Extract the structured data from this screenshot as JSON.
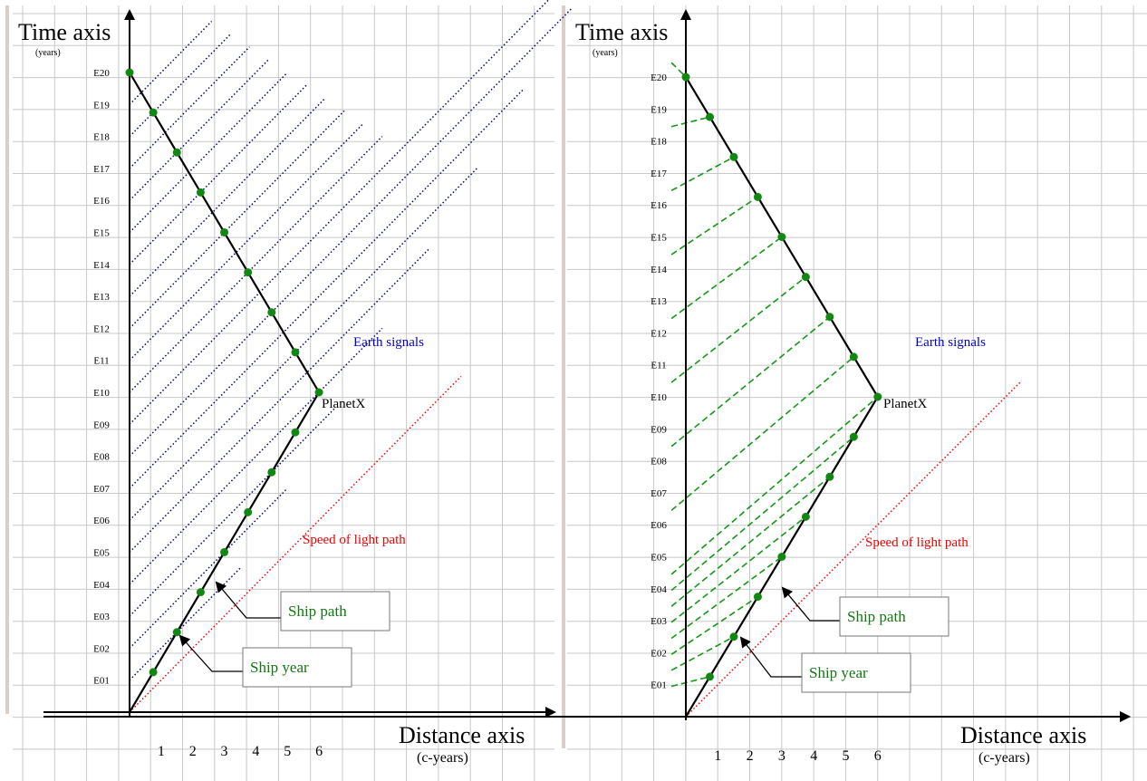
{
  "panels": [
    {
      "name": "left-panel",
      "signal_style": "earth-signals",
      "labels": {
        "time_axis": "Time axis",
        "time_unit": "(years)",
        "distance_axis": "Distance axis",
        "distance_unit": "(c-years)",
        "planet": "PlanetX",
        "earth_signals": "Earth signals",
        "light_path": "Speed of light path",
        "ship_path": "Ship path",
        "ship_year": "Ship year"
      }
    },
    {
      "name": "right-panel",
      "signal_style": "ship-signals",
      "labels": {
        "time_axis": "Time axis",
        "time_unit": "(years)",
        "distance_axis": "Distance axis",
        "distance_unit": "(c-years)",
        "planet": "PlanetX",
        "earth_signals": "Earth signals",
        "light_path": "Speed of light path",
        "ship_path": "Ship path",
        "ship_year": "Ship year"
      }
    }
  ],
  "chart_data": {
    "type": "line",
    "y_tick_labels": [
      "E01",
      "E02",
      "E03",
      "E04",
      "E05",
      "E06",
      "E07",
      "E08",
      "E09",
      "E10",
      "E11",
      "E12",
      "E13",
      "E14",
      "E15",
      "E16",
      "E17",
      "E18",
      "E19",
      "E20"
    ],
    "x_tick_labels": [
      "1",
      "2",
      "3",
      "4",
      "5",
      "6"
    ],
    "ylim": [
      0,
      20
    ],
    "xlim": [
      0,
      6
    ],
    "ship_path": {
      "outbound": [
        [
          0,
          0
        ],
        [
          6,
          10
        ]
      ],
      "return": [
        [
          6,
          10
        ],
        [
          0,
          20
        ]
      ]
    },
    "ship_year_markers": {
      "outbound": [
        [
          0.75,
          1.25
        ],
        [
          1.5,
          2.5
        ],
        [
          2.25,
          3.75
        ],
        [
          3.0,
          5.0
        ],
        [
          3.75,
          6.25
        ],
        [
          4.5,
          7.5
        ],
        [
          5.25,
          8.75
        ],
        [
          6.0,
          10.0
        ]
      ],
      "return": [
        [
          5.25,
          11.25
        ],
        [
          4.5,
          12.5
        ],
        [
          3.75,
          13.75
        ],
        [
          3.0,
          15.0
        ],
        [
          2.25,
          16.25
        ],
        [
          1.5,
          17.5
        ],
        [
          0.75,
          18.75
        ],
        [
          0.0,
          20.0
        ]
      ]
    },
    "speed_of_light_path": [
      [
        0,
        0
      ],
      [
        10.5,
        10.5
      ]
    ],
    "earth_signal_emission_years": [
      1,
      2,
      3,
      4,
      5,
      6,
      7,
      8,
      9,
      10,
      11,
      12,
      13,
      14,
      15,
      16,
      17,
      18,
      19
    ]
  },
  "colors": {
    "ship_path": "#000000",
    "ship_year_marker": "#118811",
    "earth_signals": "#00007a",
    "ship_signals": "#139813",
    "light_path": "#ee0000",
    "grid": "#c8c8c8",
    "callout_text": "#117711"
  }
}
